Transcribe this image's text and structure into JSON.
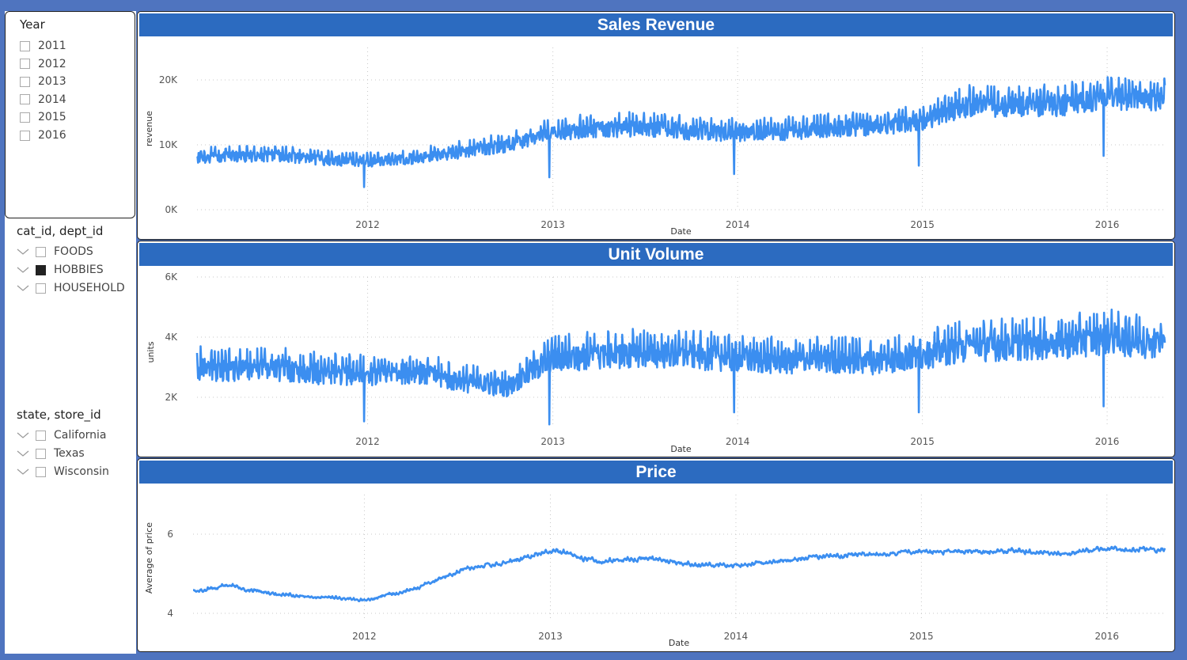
{
  "slicers": {
    "year": {
      "title": "Year",
      "items": [
        {
          "label": "2011",
          "checked": false
        },
        {
          "label": "2012",
          "checked": false
        },
        {
          "label": "2013",
          "checked": false
        },
        {
          "label": "2014",
          "checked": false
        },
        {
          "label": "2015",
          "checked": false
        },
        {
          "label": "2016",
          "checked": false
        }
      ]
    },
    "category": {
      "title": "cat_id, dept_id",
      "items": [
        {
          "label": "FOODS",
          "checked": false
        },
        {
          "label": "HOBBIES",
          "checked": true
        },
        {
          "label": "HOUSEHOLD",
          "checked": false
        }
      ]
    },
    "store": {
      "title": "state, store_id",
      "items": [
        {
          "label": "California",
          "checked": false
        },
        {
          "label": "Texas",
          "checked": false
        },
        {
          "label": "Wisconsin",
          "checked": false
        }
      ]
    }
  },
  "colors": {
    "line": "#3b8ef0",
    "header": "#2c6bc0",
    "background": "#4f74bf"
  },
  "chart_data": [
    {
      "type": "line",
      "title": "Sales Revenue",
      "xlabel": "Date",
      "ylabel": "revenue",
      "x_start": "2011-01-29",
      "x_end": "2016-04-24",
      "x_ticks": [
        "2012",
        "2013",
        "2014",
        "2015",
        "2016"
      ],
      "y_ticks": [
        {
          "value": 0,
          "label": "0K"
        },
        {
          "value": 10000,
          "label": "10K"
        },
        {
          "value": 20000,
          "label": "20K"
        }
      ],
      "ylim": [
        0,
        25000
      ],
      "grid": true,
      "series": [
        {
          "x": [
            "2011-01",
            "2011-04",
            "2011-07",
            "2011-10",
            "2012-01",
            "2012-04",
            "2012-07",
            "2012-10",
            "2013-01",
            "2013-04",
            "2013-07",
            "2013-10",
            "2014-01",
            "2014-04",
            "2014-07",
            "2014-10",
            "2015-01",
            "2015-04",
            "2015-07",
            "2015-10",
            "2016-01",
            "2016-04"
          ],
          "values": [
            8200,
            8400,
            8600,
            7900,
            7600,
            8100,
            9100,
            10200,
            12200,
            12800,
            13000,
            12400,
            12100,
            12300,
            12800,
            13200,
            14000,
            16500,
            16400,
            16600,
            17800,
            17500
          ]
        }
      ]
    },
    {
      "type": "line",
      "title": "Unit Volume",
      "xlabel": "Date",
      "ylabel": "units",
      "x_start": "2011-01-29",
      "x_end": "2016-04-24",
      "x_ticks": [
        "2012",
        "2013",
        "2014",
        "2015",
        "2016"
      ],
      "y_ticks": [
        {
          "value": 2000,
          "label": "2K"
        },
        {
          "value": 4000,
          "label": "4K"
        },
        {
          "value": 6000,
          "label": "6K"
        }
      ],
      "ylim": [
        1000,
        6000
      ],
      "grid": true,
      "series": [
        {
          "x": [
            "2011-01",
            "2011-04",
            "2011-07",
            "2011-10",
            "2012-01",
            "2012-04",
            "2012-07",
            "2012-10",
            "2013-01",
            "2013-04",
            "2013-07",
            "2013-10",
            "2014-01",
            "2014-04",
            "2014-07",
            "2014-10",
            "2015-01",
            "2015-04",
            "2015-07",
            "2015-10",
            "2016-01",
            "2016-04"
          ],
          "values": [
            3100,
            3000,
            3050,
            2900,
            2850,
            2950,
            2600,
            2400,
            3400,
            3500,
            3550,
            3500,
            3400,
            3300,
            3350,
            3300,
            3500,
            3800,
            3850,
            3900,
            4100,
            3900
          ]
        }
      ]
    },
    {
      "type": "line",
      "title": "Price",
      "xlabel": "Date",
      "ylabel": "Average of price",
      "x_start": "2011-01-29",
      "x_end": "2016-04-24",
      "x_ticks": [
        "2012",
        "2013",
        "2014",
        "2015",
        "2016"
      ],
      "y_ticks": [
        {
          "value": 4,
          "label": "4"
        },
        {
          "value": 6,
          "label": "6"
        }
      ],
      "ylim": [
        3.8,
        7.0
      ],
      "grid": true,
      "series": [
        {
          "x": [
            "2011-01",
            "2011-04",
            "2011-07",
            "2011-10",
            "2012-01",
            "2012-04",
            "2012-07",
            "2012-10",
            "2013-01",
            "2013-04",
            "2013-07",
            "2013-10",
            "2014-01",
            "2014-04",
            "2014-07",
            "2014-10",
            "2015-01",
            "2015-04",
            "2015-07",
            "2015-10",
            "2016-01",
            "2016-04"
          ],
          "values": [
            4.5,
            4.7,
            4.5,
            4.4,
            4.35,
            4.6,
            5.1,
            5.3,
            5.6,
            5.3,
            5.4,
            5.25,
            5.2,
            5.35,
            5.45,
            5.5,
            5.6,
            5.55,
            5.6,
            5.5,
            5.65,
            5.6
          ]
        }
      ]
    }
  ]
}
